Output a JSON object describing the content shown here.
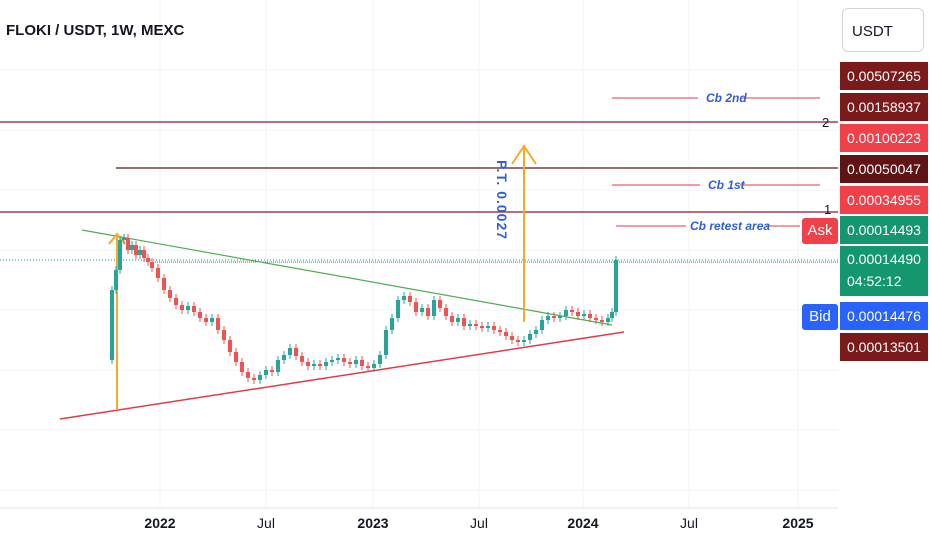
{
  "header": {
    "title": "FLOKI / USDT, 1W, MEXC",
    "currency": "USDT"
  },
  "price_tags": [
    {
      "value": "0.00507265",
      "color": "#7a1a1a"
    },
    {
      "value": "0.00158937",
      "color": "#7a1a1a"
    },
    {
      "value": "0.00100223",
      "color": "#f0414b"
    },
    {
      "value": "0.00050047",
      "color": "#5e1414"
    },
    {
      "value": "0.00034955",
      "color": "#f0414b"
    },
    {
      "value": "0.00014493",
      "color": "#14976f"
    },
    {
      "value": "0.00014490",
      "color": "#14976f"
    },
    {
      "value": "0.00014476",
      "color": "#2962ff"
    },
    {
      "value": "0.00013501",
      "color": "#7a1a1a"
    }
  ],
  "countdown": "04:52:12",
  "ask_label": "Ask",
  "bid_label": "Bid",
  "annotations": {
    "cb2": "Cb 2nd",
    "cb1": "Cb 1st",
    "retest": "Cb retest area",
    "pt": "P.T. 0.0027",
    "level2": "2",
    "level1": "1"
  },
  "chart_data": {
    "type": "candlestick",
    "title": "FLOKI / USDT, 1W, MEXC",
    "x_ticks": [
      "2022",
      "Jul",
      "2023",
      "Jul",
      "2024",
      "Jul",
      "2025"
    ],
    "last_price": 0.0001449,
    "horizontal_levels": [
      0.00100223,
      0.00050047,
      0.00034955,
      0.0001449
    ],
    "trendlines": [
      "descending resistance",
      "ascending support"
    ],
    "annotations": [
      "Cb 2nd",
      "Cb 1st",
      "Cb retest area",
      "P.T. 0.0027"
    ]
  }
}
